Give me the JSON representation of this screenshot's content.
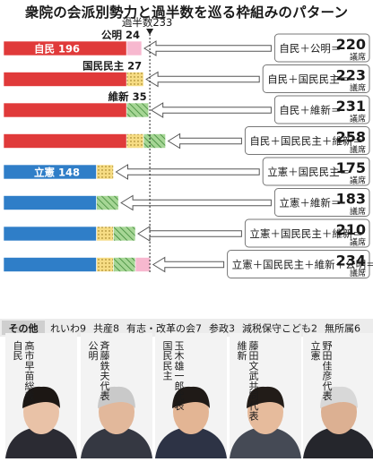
{
  "title": "衆院の会派別勢力と過半数を巡る枠組みのパターン",
  "majority_label": "過半数233",
  "colors": {
    "ldp": "#e03a3a",
    "cdp": "#2f7ec8",
    "komeito": "#f7b8cf",
    "dpp": "#f6dc84",
    "ishin": "#9fd28f",
    "arrow_fill": "#ffffff",
    "arrow_stroke": "#555555",
    "box_stroke": "#777777"
  },
  "units": {
    "seats": "議席"
  },
  "chart_data": {
    "type": "bar",
    "stacked": true,
    "horizontal": true,
    "title": "衆院の会派別勢力と過半数を巡る枠組みのパターン",
    "majority_line": {
      "label": "過半数233",
      "value": 233
    },
    "parties": {
      "ldp": {
        "name": "自民",
        "seats": 196
      },
      "komeito": {
        "name": "公明",
        "seats": 24
      },
      "dpp": {
        "name": "国民民主",
        "seats": 27
      },
      "ishin": {
        "name": "維新",
        "seats": 35
      },
      "cdp": {
        "name": "立憲",
        "seats": 148
      }
    },
    "rows": [
      {
        "parts": [
          "ldp",
          "komeito"
        ],
        "formula": "自民＋公明＝",
        "total": "220",
        "labels": [
          {
            "party": "ldp",
            "text": "自民 196",
            "pos": "inside"
          },
          {
            "party": "komeito",
            "text": "公明 24",
            "pos": "above"
          }
        ]
      },
      {
        "parts": [
          "ldp",
          "dpp"
        ],
        "formula": "自民＋国民民主＝",
        "total": "223",
        "labels": [
          {
            "party": "dpp",
            "text": "国民民主 27",
            "pos": "above"
          }
        ]
      },
      {
        "parts": [
          "ldp",
          "ishin"
        ],
        "formula": "自民＋維新＝",
        "total": "231",
        "labels": [
          {
            "party": "ishin",
            "text": "維新 35",
            "pos": "above"
          }
        ]
      },
      {
        "parts": [
          "ldp",
          "dpp",
          "ishin"
        ],
        "formula": "自民＋国民民主＋維新＝",
        "total": "258",
        "labels": []
      },
      {
        "parts": [
          "cdp",
          "dpp"
        ],
        "formula": "立憲＋国民民主＝",
        "total": "175",
        "labels": [
          {
            "party": "cdp",
            "text": "立憲 148",
            "pos": "inside"
          }
        ]
      },
      {
        "parts": [
          "cdp",
          "ishin"
        ],
        "formula": "立憲＋維新＝",
        "total": "183",
        "labels": []
      },
      {
        "parts": [
          "cdp",
          "dpp",
          "ishin"
        ],
        "formula": "立憲＋国民民主＋維新＝",
        "total": "210",
        "labels": []
      },
      {
        "parts": [
          "cdp",
          "dpp",
          "ishin",
          "komeito"
        ],
        "formula": "立憲＋国民民主＋維新＋公明＝",
        "total": "234",
        "labels": []
      }
    ]
  },
  "others": {
    "heading": "その他",
    "items": [
      "れいわ9",
      "共産8",
      "有志・改革の会7",
      "参政3",
      "減税保守こども2",
      "無所属6"
    ]
  },
  "leaders": [
    {
      "party": "自民",
      "name": "高市早苗総裁"
    },
    {
      "party": "公明",
      "name": "斉藤鉄夫代表"
    },
    {
      "party": "国民民主",
      "name": "玉木雄一郎代表"
    },
    {
      "party": "維新",
      "name": "藤田文武共同代表"
    },
    {
      "party": "立憲",
      "name": "野田佳彦代表"
    }
  ]
}
